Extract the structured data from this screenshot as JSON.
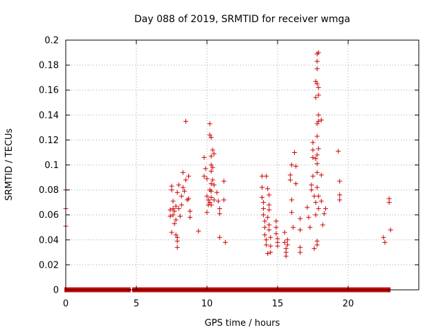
{
  "chart_data": {
    "type": "scatter",
    "title": "Day 088 of 2019, SRMTID for receiver wmga",
    "xlabel": "GPS time / hours",
    "ylabel": "SRMTID / TECUs",
    "xlim": [
      0,
      25
    ],
    "ylim": [
      0,
      0.2
    ],
    "xticks": [
      0,
      5,
      10,
      15,
      20
    ],
    "xtick_labels": [
      "0",
      "5",
      "10",
      "15",
      "20"
    ],
    "yticks": [
      0,
      0.02,
      0.04,
      0.06,
      0.08,
      0.1,
      0.12,
      0.14,
      0.16,
      0.18,
      0.2
    ],
    "ytick_labels": [
      "0",
      "0.02",
      "0.04",
      "0.06",
      "0.08",
      "0.1",
      "0.12",
      "0.14",
      "0.16",
      "0.18",
      "0.2"
    ],
    "grid": true,
    "marker": "+",
    "series": [
      {
        "name": "SRMTID",
        "color": "#cc0000",
        "baseline": {
          "y": 0,
          "x_segments": [
            [
              0,
              4.5
            ],
            [
              4.8,
              22.9
            ]
          ]
        },
        "points": [
          [
            0,
            0.08
          ],
          [
            0,
            0.065
          ],
          [
            0,
            0.051
          ],
          [
            7.4,
            0.059
          ],
          [
            7.4,
            0.064
          ],
          [
            7.5,
            0.08
          ],
          [
            7.5,
            0.083
          ],
          [
            7.5,
            0.046
          ],
          [
            7.6,
            0.065
          ],
          [
            7.6,
            0.06
          ],
          [
            7.6,
            0.071
          ],
          [
            7.7,
            0.053
          ],
          [
            7.7,
            0.063
          ],
          [
            7.8,
            0.067
          ],
          [
            7.8,
            0.056
          ],
          [
            7.8,
            0.044
          ],
          [
            7.9,
            0.039
          ],
          [
            7.9,
            0.034
          ],
          [
            7.9,
            0.042
          ],
          [
            7.9,
            0.078
          ],
          [
            8.0,
            0.084
          ],
          [
            8.0,
            0.065
          ],
          [
            8.1,
            0.059
          ],
          [
            8.2,
            0.075
          ],
          [
            8.2,
            0.068
          ],
          [
            8.3,
            0.094
          ],
          [
            8.3,
            0.082
          ],
          [
            8.4,
            0.079
          ],
          [
            8.5,
            0.135
          ],
          [
            8.5,
            0.088
          ],
          [
            8.6,
            0.072
          ],
          [
            8.7,
            0.091
          ],
          [
            8.7,
            0.073
          ],
          [
            8.8,
            0.063
          ],
          [
            8.8,
            0.058
          ],
          [
            9.4,
            0.047
          ],
          [
            9.8,
            0.106
          ],
          [
            9.8,
            0.091
          ],
          [
            9.9,
            0.097
          ],
          [
            10.0,
            0.089
          ],
          [
            10.0,
            0.075
          ],
          [
            10.0,
            0.062
          ],
          [
            10.1,
            0.068
          ],
          [
            10.1,
            0.072
          ],
          [
            10.2,
            0.133
          ],
          [
            10.2,
            0.124
          ],
          [
            10.2,
            0.08
          ],
          [
            10.2,
            0.07
          ],
          [
            10.3,
            0.122
          ],
          [
            10.3,
            0.107
          ],
          [
            10.3,
            0.1
          ],
          [
            10.3,
            0.095
          ],
          [
            10.3,
            0.085
          ],
          [
            10.3,
            0.079
          ],
          [
            10.3,
            0.074
          ],
          [
            10.3,
            0.068
          ],
          [
            10.4,
            0.112
          ],
          [
            10.4,
            0.098
          ],
          [
            10.4,
            0.088
          ],
          [
            10.5,
            0.109
          ],
          [
            10.5,
            0.084
          ],
          [
            10.5,
            0.072
          ],
          [
            10.7,
            0.078
          ],
          [
            10.8,
            0.071
          ],
          [
            10.9,
            0.065
          ],
          [
            10.9,
            0.061
          ],
          [
            10.9,
            0.042
          ],
          [
            11.2,
            0.087
          ],
          [
            11.2,
            0.072
          ],
          [
            11.3,
            0.038
          ],
          [
            13.9,
            0.091
          ],
          [
            13.9,
            0.082
          ],
          [
            13.9,
            0.074
          ],
          [
            14.0,
            0.07
          ],
          [
            14.0,
            0.065
          ],
          [
            14.0,
            0.06
          ],
          [
            14.1,
            0.055
          ],
          [
            14.1,
            0.05
          ],
          [
            14.1,
            0.044
          ],
          [
            14.2,
            0.091
          ],
          [
            14.2,
            0.04
          ],
          [
            14.2,
            0.036
          ],
          [
            14.3,
            0.081
          ],
          [
            14.3,
            0.058
          ],
          [
            14.3,
            0.029
          ],
          [
            14.4,
            0.076
          ],
          [
            14.4,
            0.068
          ],
          [
            14.4,
            0.064
          ],
          [
            14.4,
            0.052
          ],
          [
            14.4,
            0.048
          ],
          [
            14.5,
            0.042
          ],
          [
            14.5,
            0.035
          ],
          [
            14.5,
            0.03
          ],
          [
            14.9,
            0.055
          ],
          [
            14.9,
            0.05
          ],
          [
            14.9,
            0.045
          ],
          [
            15.0,
            0.041
          ],
          [
            15.0,
            0.038
          ],
          [
            15.0,
            0.035
          ],
          [
            15.5,
            0.046
          ],
          [
            15.5,
            0.038
          ],
          [
            15.6,
            0.033
          ],
          [
            15.6,
            0.03
          ],
          [
            15.6,
            0.027
          ],
          [
            15.7,
            0.04
          ],
          [
            15.7,
            0.036
          ],
          [
            15.9,
            0.092
          ],
          [
            15.9,
            0.088
          ],
          [
            16.0,
            0.1
          ],
          [
            16.0,
            0.072
          ],
          [
            16.0,
            0.062
          ],
          [
            16.1,
            0.05
          ],
          [
            16.2,
            0.11
          ],
          [
            16.3,
            0.099
          ],
          [
            16.3,
            0.085
          ],
          [
            16.6,
            0.057
          ],
          [
            16.6,
            0.048
          ],
          [
            16.6,
            0.034
          ],
          [
            16.6,
            0.03
          ],
          [
            17.1,
            0.066
          ],
          [
            17.2,
            0.058
          ],
          [
            17.3,
            0.05
          ],
          [
            17.4,
            0.084
          ],
          [
            17.4,
            0.08
          ],
          [
            17.5,
            0.118
          ],
          [
            17.5,
            0.112
          ],
          [
            17.5,
            0.106
          ],
          [
            17.5,
            0.091
          ],
          [
            17.6,
            0.075
          ],
          [
            17.6,
            0.033
          ],
          [
            17.7,
            0.167
          ],
          [
            17.7,
            0.154
          ],
          [
            17.7,
            0.105
          ],
          [
            17.7,
            0.07
          ],
          [
            17.7,
            0.06
          ],
          [
            17.8,
            0.189
          ],
          [
            17.8,
            0.183
          ],
          [
            17.8,
            0.177
          ],
          [
            17.8,
            0.165
          ],
          [
            17.8,
            0.133
          ],
          [
            17.8,
            0.123
          ],
          [
            17.8,
            0.108
          ],
          [
            17.8,
            0.101
          ],
          [
            17.8,
            0.094
          ],
          [
            17.8,
            0.082
          ],
          [
            17.8,
            0.039
          ],
          [
            17.8,
            0.036
          ],
          [
            17.9,
            0.19
          ],
          [
            17.9,
            0.162
          ],
          [
            17.9,
            0.156
          ],
          [
            17.9,
            0.14
          ],
          [
            17.9,
            0.135
          ],
          [
            17.9,
            0.113
          ],
          [
            17.9,
            0.075
          ],
          [
            17.9,
            0.065
          ],
          [
            18.1,
            0.136
          ],
          [
            18.1,
            0.092
          ],
          [
            18.1,
            0.071
          ],
          [
            18.2,
            0.052
          ],
          [
            18.3,
            0.061
          ],
          [
            18.4,
            0.065
          ],
          [
            19.3,
            0.111
          ],
          [
            19.4,
            0.087
          ],
          [
            19.4,
            0.076
          ],
          [
            19.4,
            0.072
          ],
          [
            22.5,
            0.042
          ],
          [
            22.6,
            0.038
          ],
          [
            22.9,
            0.073
          ],
          [
            22.9,
            0.07
          ],
          [
            23.0,
            0.048
          ]
        ]
      }
    ]
  }
}
